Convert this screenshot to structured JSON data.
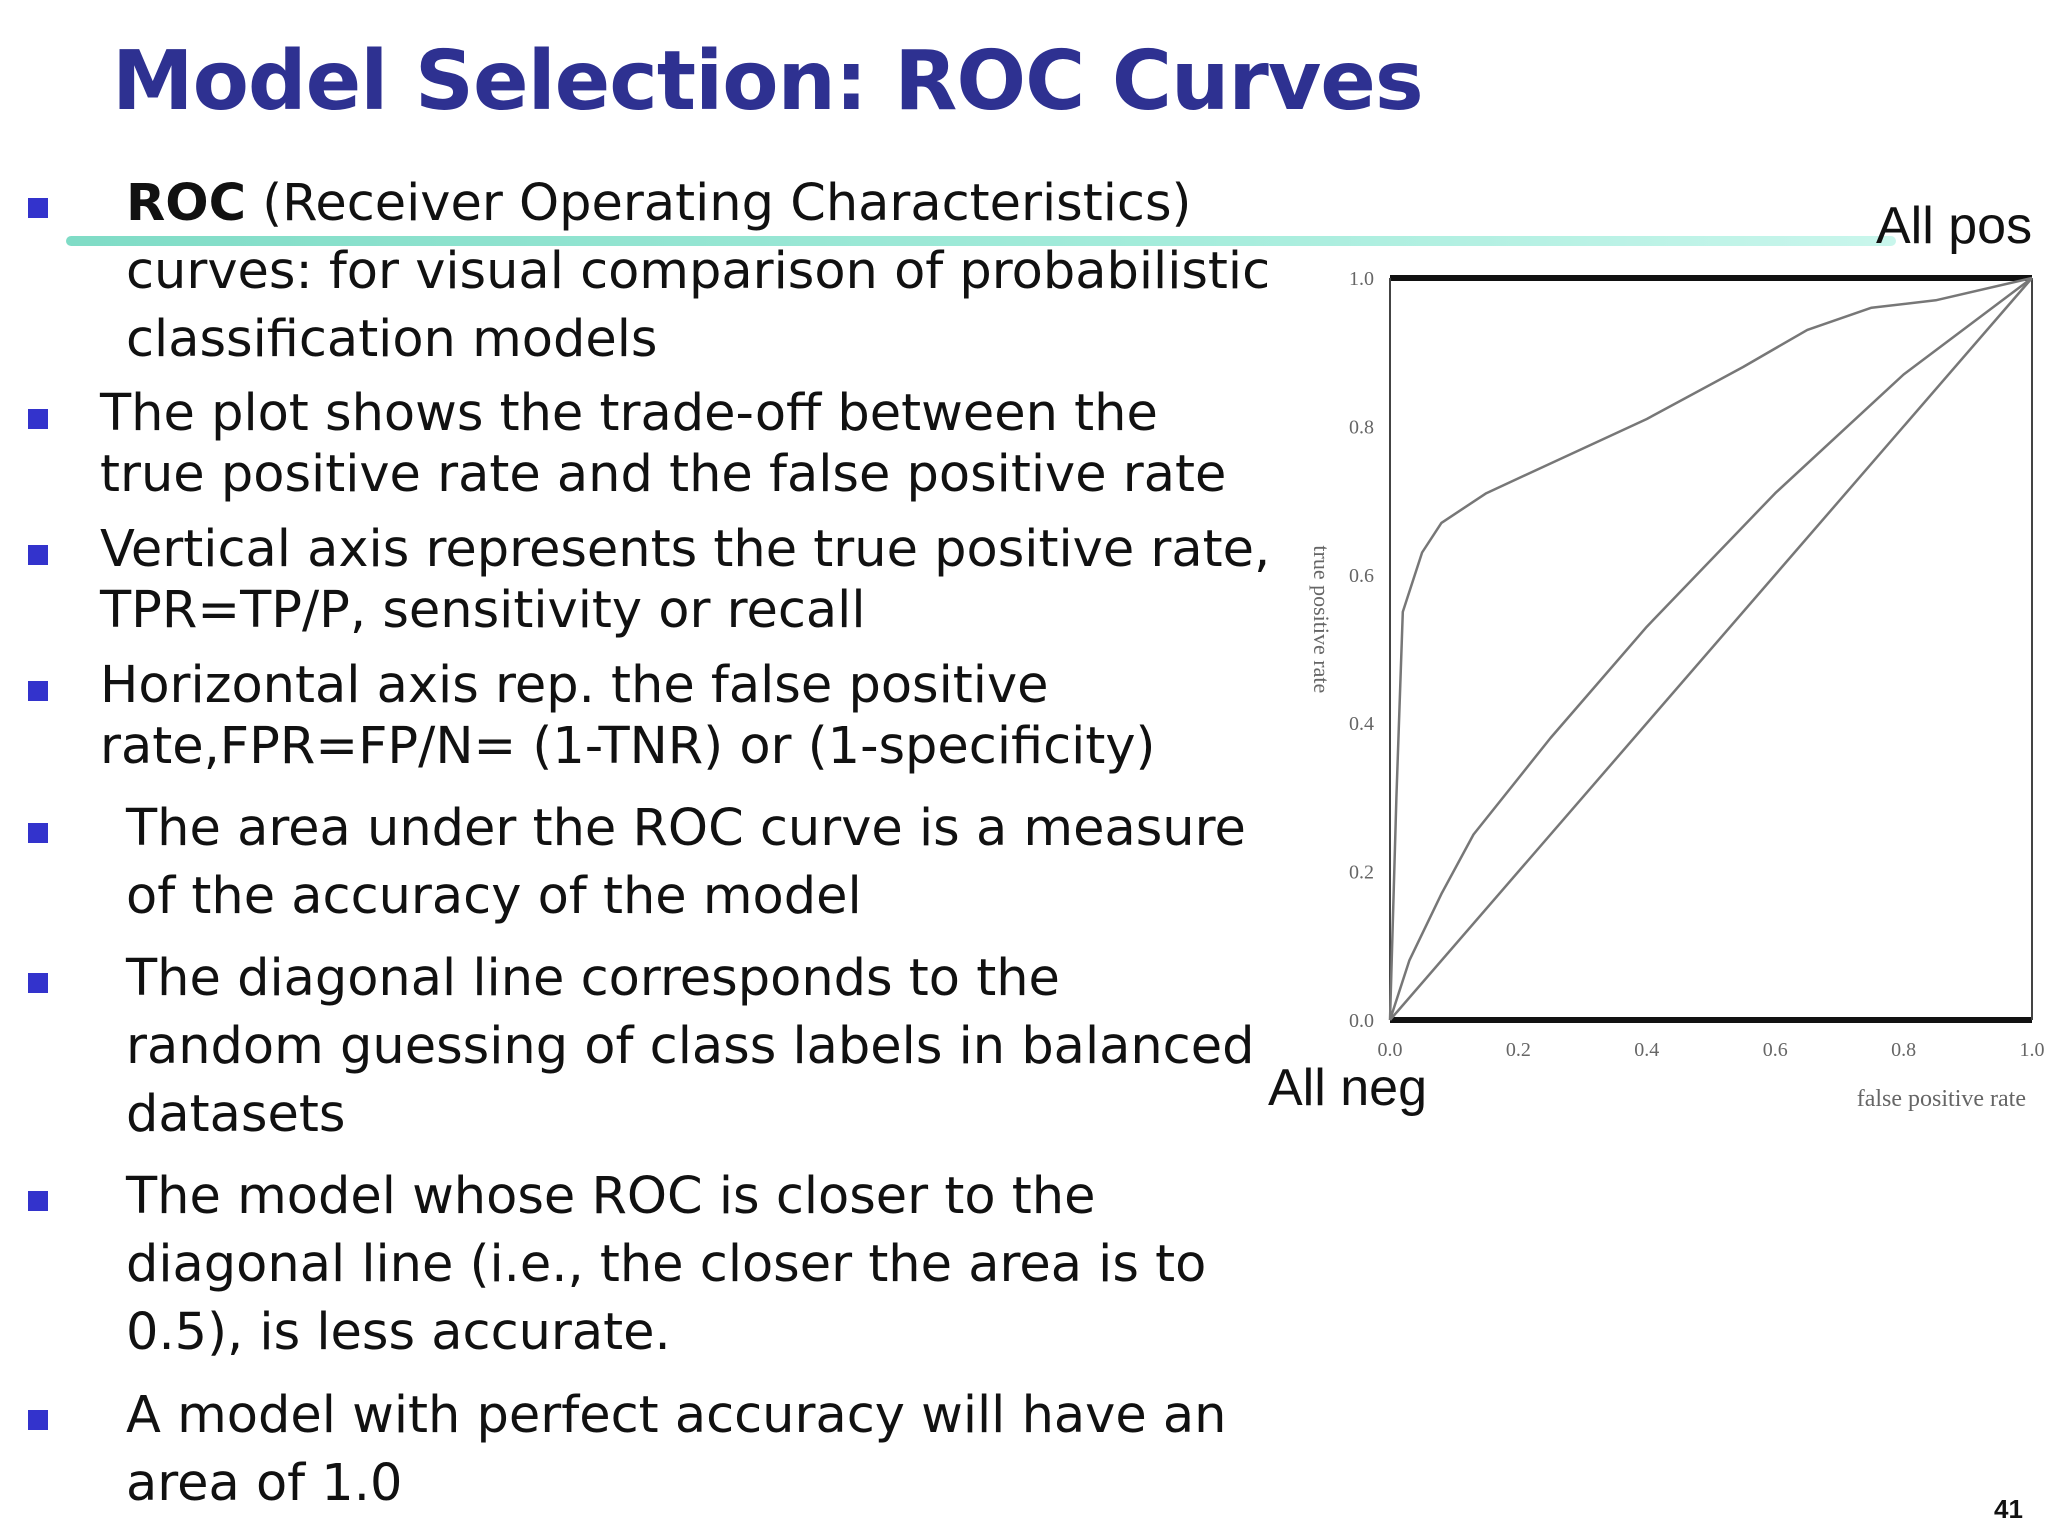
{
  "title": "Model Selection: ROC Curves",
  "bullets": [
    {
      "lead": "ROC",
      "lines": [
        " (Receiver Operating Characteristics)",
        "curves: for visual comparison of probabilistic",
        "classification models"
      ]
    },
    {
      "lines": [
        "The plot shows the trade-off between the",
        "true positive rate and the false positive rate"
      ]
    },
    {
      "lines": [
        "Vertical axis represents the true positive rate,",
        "TPR=TP/P, sensitivity or recall"
      ]
    },
    {
      "lines": [
        "Horizontal axis rep. the false positive",
        "rate,FPR=FP/N= (1-TNR) or (1-specificity)"
      ]
    },
    {
      "lines": [
        "The area under the ROC curve is a measure",
        "of the accuracy of the model"
      ]
    },
    {
      "lines": [
        "The diagonal line corresponds to the",
        "random guessing of class labels in balanced",
        "datasets"
      ]
    },
    {
      "lines": [
        "The model whose ROC is closer to the",
        "diagonal line (i.e., the closer the area is to",
        "0.5), is less accurate."
      ]
    },
    {
      "lines": [
        "A model with perfect accuracy will have an",
        "area of 1.0"
      ]
    }
  ],
  "annotations": {
    "all_pos": "All pos",
    "all_neg": "All neg"
  },
  "page_number": "41",
  "chart_data": {
    "type": "line",
    "xlabel": "false positive rate",
    "ylabel": "true positive rate",
    "xlim": [
      0,
      1
    ],
    "ylim": [
      0,
      1
    ],
    "x_ticks": [
      "0.0",
      "0.2",
      "0.4",
      "0.6",
      "0.8",
      "1.0"
    ],
    "y_ticks": [
      "0.0",
      "0.2",
      "0.4",
      "0.6",
      "0.8",
      "1.0"
    ],
    "grid": false,
    "series": [
      {
        "points": [
          [
            0,
            0
          ],
          [
            0.01,
            0.3
          ],
          [
            0.02,
            0.55
          ],
          [
            0.05,
            0.63
          ],
          [
            0.08,
            0.67
          ],
          [
            0.15,
            0.71
          ],
          [
            0.25,
            0.75
          ],
          [
            0.4,
            0.81
          ],
          [
            0.55,
            0.88
          ],
          [
            0.65,
            0.93
          ],
          [
            0.75,
            0.96
          ],
          [
            0.85,
            0.97
          ],
          [
            1,
            1
          ]
        ]
      },
      {
        "points": [
          [
            0,
            0
          ],
          [
            0.03,
            0.08
          ],
          [
            0.08,
            0.17
          ],
          [
            0.13,
            0.25
          ],
          [
            0.25,
            0.38
          ],
          [
            0.4,
            0.53
          ],
          [
            0.6,
            0.71
          ],
          [
            0.8,
            0.87
          ],
          [
            1,
            1
          ]
        ]
      },
      {
        "points": [
          [
            0,
            0
          ],
          [
            1,
            1
          ]
        ]
      }
    ],
    "colors": {
      "curve": "#777777",
      "frame": "#111111"
    }
  }
}
